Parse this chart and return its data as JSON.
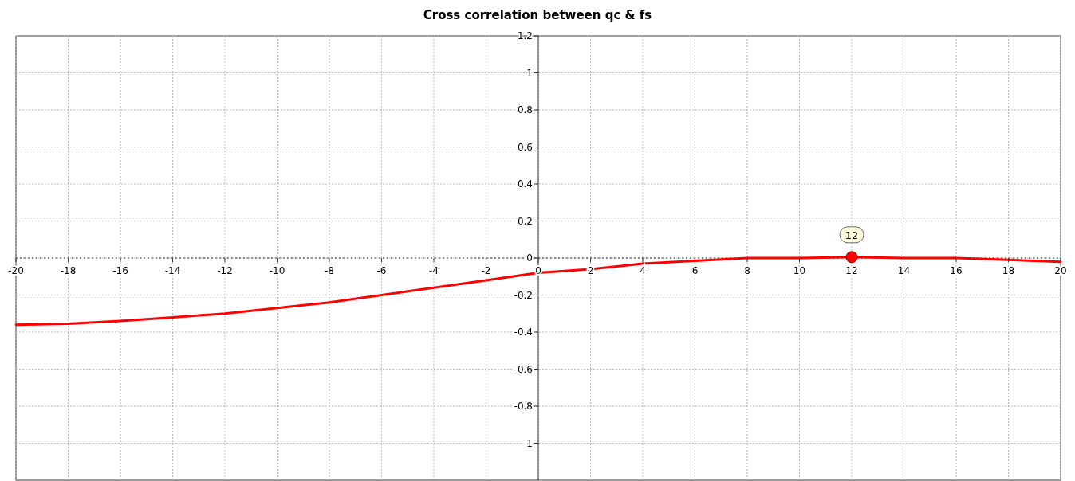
{
  "chart_data": {
    "type": "line",
    "title": "Cross correlation between qc & fs",
    "x": [
      -20,
      -18,
      -16,
      -14,
      -12,
      -10,
      -8,
      -6,
      -4,
      -2,
      0,
      2,
      4,
      6,
      8,
      10,
      12,
      14,
      16,
      18,
      20
    ],
    "series": [
      {
        "color": "#ff0000",
        "values": [
          -0.36,
          -0.355,
          -0.34,
          -0.32,
          -0.3,
          -0.27,
          -0.24,
          -0.2,
          -0.16,
          -0.12,
          -0.08,
          -0.06,
          -0.03,
          -0.015,
          0,
          0,
          0.005,
          0,
          0,
          -0.01,
          -0.02
        ]
      },
      {
        "type": "scatter",
        "color": "#ff0000",
        "x": [
          12
        ],
        "values": [
          0.005
        ],
        "marker": "circle"
      }
    ],
    "annotations": [
      {
        "text": "12",
        "x": 12,
        "y": 0.005
      }
    ],
    "xlim": [
      -20,
      20
    ],
    "xticks": [
      -20,
      -18,
      -16,
      -14,
      -12,
      -10,
      -8,
      -6,
      -4,
      -2,
      0,
      2,
      4,
      6,
      8,
      10,
      12,
      14,
      16,
      18,
      20
    ],
    "ylim": [
      -1.2,
      1.2
    ],
    "yticks": [
      -1,
      -0.8,
      -0.6,
      -0.4,
      -0.2,
      0,
      0.2,
      0.4,
      0.6,
      0.8,
      1,
      1.2
    ],
    "grid": true,
    "marker": "none",
    "ref_lines": [
      {
        "axis": "y",
        "value": 0,
        "line_style": "dotted",
        "color": "#333333"
      }
    ]
  }
}
